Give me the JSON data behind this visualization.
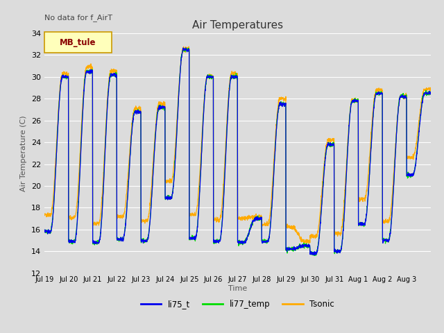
{
  "title": "Air Temperatures",
  "top_left_text": "No data for f_AirT",
  "legend_box_text": "MB_tule",
  "ylabel": "Air Temperature (C)",
  "xlabel": "Time",
  "ylim": [
    12,
    34
  ],
  "yticks": [
    12,
    14,
    16,
    18,
    20,
    22,
    24,
    26,
    28,
    30,
    32,
    34
  ],
  "bg_color": "#dcdcdc",
  "plot_bg": "#dcdcdc",
  "series_colors": {
    "li75_t": "#0000ee",
    "li77_temp": "#00dd00",
    "Tsonic": "#ffaa00"
  },
  "x_tick_labels": [
    "Jul 19",
    "Jul 20",
    "Jul 21",
    "Jul 22",
    "Jul 23",
    "Jul 24",
    "Jul 25",
    "Jul 26",
    "Jul 27",
    "Jul 28",
    "Jul 29",
    "Jul 30",
    "Jul 31",
    "Aug 1",
    "Aug 2",
    "Aug 3"
  ],
  "n_days": 16,
  "ppd": 144,
  "peak_hour": 0.58,
  "daily_max": [
    30.0,
    30.5,
    30.2,
    26.8,
    27.2,
    32.5,
    30.0,
    30.0,
    17.0,
    27.5,
    14.5,
    23.8,
    27.8,
    28.5,
    28.2,
    28.5
  ],
  "daily_min": [
    15.8,
    14.9,
    14.8,
    15.1,
    15.0,
    18.9,
    15.2,
    14.9,
    14.8,
    14.9,
    14.2,
    13.8,
    14.0,
    16.5,
    15.0,
    21.0
  ]
}
